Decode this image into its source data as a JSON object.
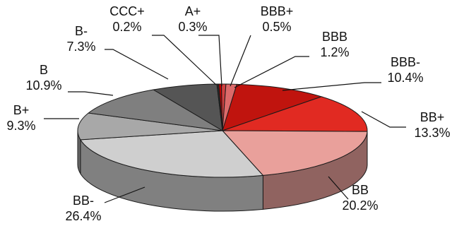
{
  "chart_data": {
    "type": "pie",
    "style": "3d-exploded-depth",
    "title": "",
    "slices": [
      {
        "label": "A+",
        "value_label": "0.3%",
        "value": 0.3,
        "color": "#c00000"
      },
      {
        "label": "BBB+",
        "value_label": "0.5%",
        "value": 0.5,
        "color": "#d04040"
      },
      {
        "label": "BBB",
        "value_label": "1.2%",
        "value": 1.2,
        "color": "#dc6a6a"
      },
      {
        "label": "BBB-",
        "value_label": "10.4%",
        "value": 10.4,
        "color": "#c0140e"
      },
      {
        "label": "BB+",
        "value_label": "13.3%",
        "value": 13.3,
        "color": "#e12a22"
      },
      {
        "label": "BB",
        "value_label": "20.2%",
        "value": 20.2,
        "color": "#e9a09b"
      },
      {
        "label": "BB-",
        "value_label": "26.4%",
        "value": 26.4,
        "color": "#cfcfcf"
      },
      {
        "label": "B+",
        "value_label": "9.3%",
        "value": 9.3,
        "color": "#a8a8a8"
      },
      {
        "label": "B",
        "value_label": "10.9%",
        "value": 10.9,
        "color": "#7f7f7f"
      },
      {
        "label": "B-",
        "value_label": "7.3%",
        "value": 7.3,
        "color": "#555555"
      },
      {
        "label": "CCC+",
        "value_label": "0.2%",
        "value": 0.2,
        "color": "#2b2b2b"
      }
    ]
  }
}
